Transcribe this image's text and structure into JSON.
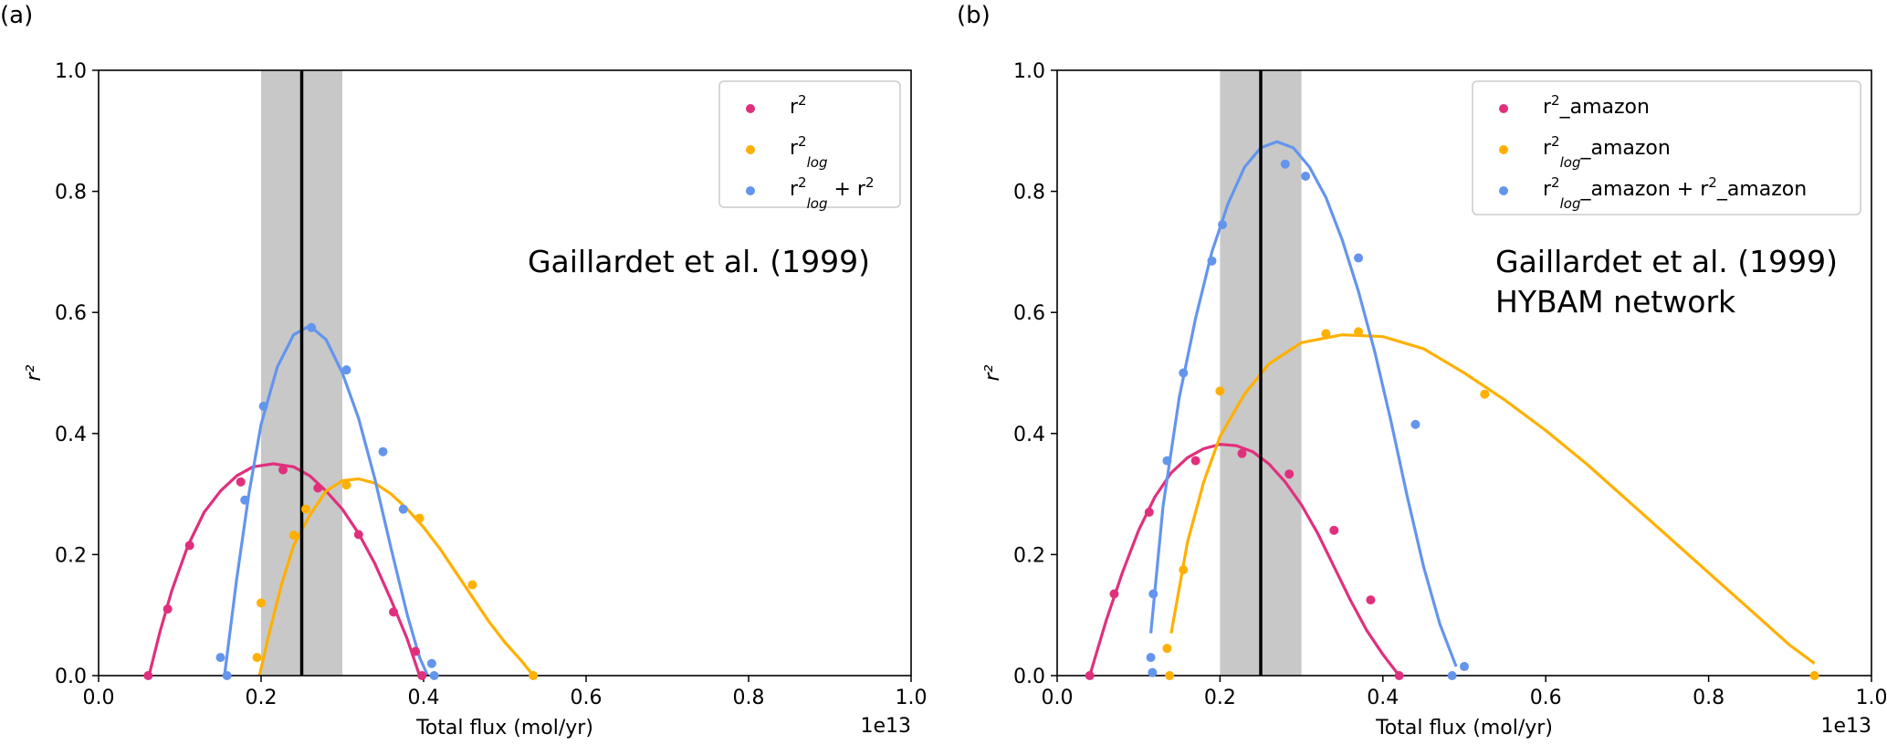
{
  "chart_data": [
    {
      "panel_label": "(a)",
      "type": "scatter",
      "annotation": [
        "Gaillardet et al. (1999)"
      ],
      "xlabel": "Total flux (mol/yr)",
      "ylabel": "r²",
      "x_offset_text": "1e13",
      "xlim": [
        0.0,
        1.0
      ],
      "ylim": [
        0.0,
        1.0
      ],
      "x_ticks": [
        0.0,
        0.2,
        0.4,
        0.6,
        0.8,
        1.0
      ],
      "x_tick_labels": [
        "0.0",
        "0.2",
        "0.4",
        "0.6",
        "0.8",
        "1.0"
      ],
      "y_ticks": [
        0.0,
        0.2,
        0.4,
        0.6,
        0.8,
        1.0
      ],
      "y_tick_labels": [
        "0.0",
        "0.2",
        "0.4",
        "0.6",
        "0.8",
        "1.0"
      ],
      "grid": false,
      "legend_position": "top-right",
      "reference_line_x": 0.25,
      "shaded_band_x": [
        0.2,
        0.3
      ],
      "series": [
        {
          "name": "r²",
          "legend_parts": [
            {
              "t": "r"
            },
            {
              "t": "2",
              "sup": true
            }
          ],
          "color": "#e0307d",
          "points": [
            [
              0.061,
              0.0
            ],
            [
              0.085,
              0.11
            ],
            [
              0.112,
              0.215
            ],
            [
              0.175,
              0.32
            ],
            [
              0.227,
              0.34
            ],
            [
              0.27,
              0.31
            ],
            [
              0.32,
              0.233
            ],
            [
              0.363,
              0.105
            ],
            [
              0.39,
              0.04
            ],
            [
              0.398,
              0.0
            ]
          ],
          "fit": [
            [
              0.062,
              0.0
            ],
            [
              0.075,
              0.07
            ],
            [
              0.09,
              0.14
            ],
            [
              0.11,
              0.215
            ],
            [
              0.13,
              0.27
            ],
            [
              0.15,
              0.305
            ],
            [
              0.17,
              0.33
            ],
            [
              0.19,
              0.345
            ],
            [
              0.215,
              0.35
            ],
            [
              0.24,
              0.345
            ],
            [
              0.26,
              0.33
            ],
            [
              0.28,
              0.305
            ],
            [
              0.3,
              0.275
            ],
            [
              0.32,
              0.235
            ],
            [
              0.34,
              0.185
            ],
            [
              0.36,
              0.125
            ],
            [
              0.38,
              0.06
            ],
            [
              0.395,
              0.0
            ]
          ]
        },
        {
          "name": "r²log",
          "legend_parts": [
            {
              "t": "r"
            },
            {
              "t": "2",
              "sup": true
            },
            {
              "t": "log",
              "sub": true,
              "italic": true
            }
          ],
          "color": "#ffb000",
          "points": [
            [
              0.195,
              0.03
            ],
            [
              0.2,
              0.12
            ],
            [
              0.24,
              0.232
            ],
            [
              0.255,
              0.275
            ],
            [
              0.305,
              0.315
            ],
            [
              0.395,
              0.26
            ],
            [
              0.46,
              0.15
            ],
            [
              0.535,
              0.0
            ]
          ],
          "fit": [
            [
              0.198,
              0.0
            ],
            [
              0.21,
              0.07
            ],
            [
              0.225,
              0.15
            ],
            [
              0.24,
              0.215
            ],
            [
              0.26,
              0.265
            ],
            [
              0.28,
              0.305
            ],
            [
              0.3,
              0.322
            ],
            [
              0.32,
              0.325
            ],
            [
              0.34,
              0.318
            ],
            [
              0.36,
              0.3
            ],
            [
              0.38,
              0.275
            ],
            [
              0.4,
              0.245
            ],
            [
              0.42,
              0.21
            ],
            [
              0.44,
              0.17
            ],
            [
              0.46,
              0.13
            ],
            [
              0.48,
              0.09
            ],
            [
              0.5,
              0.055
            ],
            [
              0.52,
              0.025
            ],
            [
              0.535,
              0.0
            ]
          ]
        },
        {
          "name": "r²log + r²",
          "legend_parts": [
            {
              "t": "r"
            },
            {
              "t": "2",
              "sup": true
            },
            {
              "t": "log",
              "sub": true,
              "italic": true
            },
            {
              "t": " + r"
            },
            {
              "t": "2",
              "sup": true
            }
          ],
          "color": "#6495ed",
          "points": [
            [
              0.15,
              0.03
            ],
            [
              0.158,
              0.0
            ],
            [
              0.18,
              0.29
            ],
            [
              0.203,
              0.445
            ],
            [
              0.262,
              0.575
            ],
            [
              0.305,
              0.505
            ],
            [
              0.35,
              0.37
            ],
            [
              0.375,
              0.275
            ],
            [
              0.41,
              0.02
            ],
            [
              0.413,
              0.0
            ]
          ],
          "fit": [
            [
              0.155,
              0.0
            ],
            [
              0.17,
              0.16
            ],
            [
              0.185,
              0.3
            ],
            [
              0.2,
              0.415
            ],
            [
              0.22,
              0.51
            ],
            [
              0.24,
              0.563
            ],
            [
              0.26,
              0.578
            ],
            [
              0.28,
              0.555
            ],
            [
              0.3,
              0.5
            ],
            [
              0.32,
              0.425
            ],
            [
              0.34,
              0.325
            ],
            [
              0.36,
              0.21
            ],
            [
              0.38,
              0.1
            ],
            [
              0.395,
              0.03
            ],
            [
              0.405,
              0.0
            ]
          ]
        }
      ]
    },
    {
      "panel_label": "(b)",
      "type": "scatter",
      "annotation": [
        "Gaillardet et al. (1999)",
        "HYBAM network"
      ],
      "xlabel": "Total flux (mol/yr)",
      "ylabel": "r²",
      "x_offset_text": "1e13",
      "xlim": [
        0.0,
        1.0
      ],
      "ylim": [
        0.0,
        1.0
      ],
      "x_ticks": [
        0.0,
        0.2,
        0.4,
        0.6,
        0.8,
        1.0
      ],
      "x_tick_labels": [
        "0.0",
        "0.2",
        "0.4",
        "0.6",
        "0.8",
        "1.0"
      ],
      "y_ticks": [
        0.0,
        0.2,
        0.4,
        0.6,
        0.8,
        1.0
      ],
      "y_tick_labels": [
        "0.0",
        "0.2",
        "0.4",
        "0.6",
        "0.8",
        "1.0"
      ],
      "grid": false,
      "legend_position": "top-right",
      "reference_line_x": 0.25,
      "shaded_band_x": [
        0.2,
        0.3
      ],
      "series": [
        {
          "name": "r²_amazon",
          "legend_parts": [
            {
              "t": "r"
            },
            {
              "t": "2",
              "sup": true
            },
            {
              "t": "_amazon"
            }
          ],
          "color": "#e0307d",
          "points": [
            [
              0.04,
              0.0
            ],
            [
              0.07,
              0.135
            ],
            [
              0.113,
              0.27
            ],
            [
              0.17,
              0.355
            ],
            [
              0.227,
              0.367
            ],
            [
              0.285,
              0.333
            ],
            [
              0.34,
              0.24
            ],
            [
              0.385,
              0.125
            ],
            [
              0.42,
              0.0
            ]
          ],
          "fit": [
            [
              0.04,
              0.0
            ],
            [
              0.06,
              0.09
            ],
            [
              0.08,
              0.17
            ],
            [
              0.1,
              0.24
            ],
            [
              0.12,
              0.295
            ],
            [
              0.14,
              0.335
            ],
            [
              0.16,
              0.36
            ],
            [
              0.18,
              0.375
            ],
            [
              0.2,
              0.382
            ],
            [
              0.22,
              0.38
            ],
            [
              0.24,
              0.37
            ],
            [
              0.26,
              0.35
            ],
            [
              0.28,
              0.32
            ],
            [
              0.3,
              0.282
            ],
            [
              0.32,
              0.235
            ],
            [
              0.34,
              0.18
            ],
            [
              0.36,
              0.125
            ],
            [
              0.38,
              0.075
            ],
            [
              0.4,
              0.035
            ],
            [
              0.42,
              0.0
            ]
          ]
        },
        {
          "name": "r²log_amazon",
          "legend_parts": [
            {
              "t": "r"
            },
            {
              "t": "2",
              "sup": true
            },
            {
              "t": "log",
              "sub": true,
              "italic": true
            },
            {
              "t": "_amazon"
            }
          ],
          "color": "#ffb000",
          "points": [
            [
              0.135,
              0.045
            ],
            [
              0.138,
              0.0
            ],
            [
              0.155,
              0.175
            ],
            [
              0.2,
              0.47
            ],
            [
              0.33,
              0.565
            ],
            [
              0.37,
              0.568
            ],
            [
              0.525,
              0.465
            ],
            [
              0.93,
              0.0
            ]
          ],
          "fit": [
            [
              0.14,
              0.07
            ],
            [
              0.16,
              0.22
            ],
            [
              0.18,
              0.32
            ],
            [
              0.2,
              0.395
            ],
            [
              0.23,
              0.465
            ],
            [
              0.26,
              0.515
            ],
            [
              0.3,
              0.55
            ],
            [
              0.35,
              0.563
            ],
            [
              0.4,
              0.56
            ],
            [
              0.45,
              0.54
            ],
            [
              0.5,
              0.5
            ],
            [
              0.55,
              0.455
            ],
            [
              0.6,
              0.405
            ],
            [
              0.65,
              0.35
            ],
            [
              0.7,
              0.29
            ],
            [
              0.75,
              0.23
            ],
            [
              0.8,
              0.17
            ],
            [
              0.85,
              0.11
            ],
            [
              0.9,
              0.05
            ],
            [
              0.93,
              0.02
            ]
          ]
        },
        {
          "name": "r²log_amazon + r²_amazon",
          "legend_parts": [
            {
              "t": "r"
            },
            {
              "t": "2",
              "sup": true
            },
            {
              "t": "log",
              "sub": true,
              "italic": true
            },
            {
              "t": "_amazon + r"
            },
            {
              "t": "2",
              "sup": true
            },
            {
              "t": "_amazon"
            }
          ],
          "color": "#6495ed",
          "points": [
            [
              0.115,
              0.03
            ],
            [
              0.117,
              0.005
            ],
            [
              0.118,
              0.135
            ],
            [
              0.135,
              0.355
            ],
            [
              0.155,
              0.5
            ],
            [
              0.19,
              0.685
            ],
            [
              0.203,
              0.745
            ],
            [
              0.28,
              0.845
            ],
            [
              0.305,
              0.825
            ],
            [
              0.37,
              0.69
            ],
            [
              0.44,
              0.415
            ],
            [
              0.485,
              0.0
            ],
            [
              0.5,
              0.015
            ]
          ],
          "fit": [
            [
              0.115,
              0.07
            ],
            [
              0.13,
              0.28
            ],
            [
              0.15,
              0.46
            ],
            [
              0.17,
              0.59
            ],
            [
              0.19,
              0.7
            ],
            [
              0.21,
              0.78
            ],
            [
              0.23,
              0.84
            ],
            [
              0.25,
              0.872
            ],
            [
              0.27,
              0.882
            ],
            [
              0.29,
              0.872
            ],
            [
              0.31,
              0.84
            ],
            [
              0.33,
              0.79
            ],
            [
              0.35,
              0.72
            ],
            [
              0.37,
              0.635
            ],
            [
              0.39,
              0.535
            ],
            [
              0.41,
              0.42
            ],
            [
              0.43,
              0.295
            ],
            [
              0.45,
              0.18
            ],
            [
              0.47,
              0.085
            ],
            [
              0.49,
              0.015
            ]
          ]
        }
      ]
    }
  ]
}
